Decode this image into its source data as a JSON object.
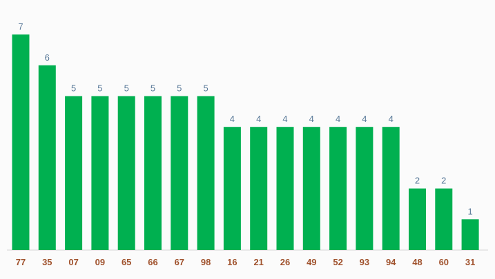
{
  "chart_data": {
    "type": "bar",
    "title": "",
    "xlabel": "",
    "ylabel": "",
    "categories": [
      "77",
      "35",
      "07",
      "09",
      "65",
      "66",
      "67",
      "98",
      "16",
      "21",
      "26",
      "49",
      "52",
      "93",
      "94",
      "48",
      "60",
      "31"
    ],
    "values": [
      7,
      6,
      5,
      5,
      5,
      5,
      5,
      5,
      4,
      4,
      4,
      4,
      4,
      4,
      4,
      2,
      2,
      1
    ],
    "ylim": [
      0,
      7
    ],
    "grid": false,
    "legend": "none",
    "data_labels": true
  },
  "colors": {
    "bar": "#00b050",
    "value_label": "#5a7a99",
    "tick_label": "#a0522d",
    "baseline": "#d6d6d6",
    "background": "#fbfbfb"
  }
}
